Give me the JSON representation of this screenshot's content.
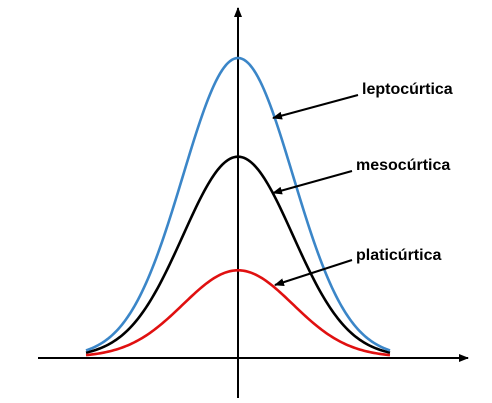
{
  "curves": [
    {
      "id": "leptocurtica",
      "label": "leptocúrtica",
      "color": "#3b86c8",
      "peak": 1.0,
      "spread": 1.0
    },
    {
      "id": "mesocurtica",
      "label": "mesocúrtica",
      "color": "#000000",
      "peak": 0.67,
      "spread": 1.0
    },
    {
      "id": "platicurtica",
      "label": "platicúrtica",
      "color": "#e01010",
      "peak": 0.29,
      "spread": 1.0
    }
  ],
  "axis_color": "#000000"
}
